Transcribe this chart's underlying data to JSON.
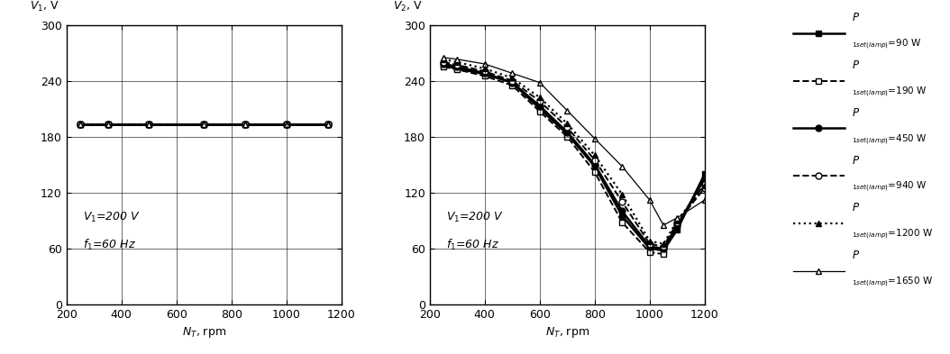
{
  "left_chart": {
    "ylabel": "$V_1$, V",
    "xlabel": "$N_T$, rpm",
    "xlim": [
      200,
      1200
    ],
    "ylim": [
      0,
      300
    ],
    "yticks": [
      0,
      60,
      120,
      180,
      240,
      300
    ],
    "xticks": [
      200,
      400,
      600,
      800,
      1000,
      1200
    ],
    "annotation1": "$V_1$=200 V",
    "annotation2": "$f_1$=60 Hz",
    "series": [
      {
        "x": [
          250,
          350,
          500,
          700,
          850,
          1000,
          1150
        ],
        "y": [
          193,
          193,
          193,
          193,
          193,
          193,
          193
        ]
      },
      {
        "x": [
          250,
          350,
          500,
          700,
          850,
          1000,
          1150
        ],
        "y": [
          193,
          193,
          193,
          193,
          193,
          193,
          193
        ]
      },
      {
        "x": [
          250,
          350,
          500,
          700,
          850,
          1000,
          1150
        ],
        "y": [
          193,
          193,
          193,
          193,
          193,
          193,
          193
        ]
      },
      {
        "x": [
          250,
          350,
          500,
          700,
          850,
          1000,
          1150
        ],
        "y": [
          193,
          193,
          193,
          193,
          193,
          193,
          193
        ]
      },
      {
        "x": [
          250,
          350,
          500,
          700,
          850,
          1000,
          1150
        ],
        "y": [
          193,
          193,
          193,
          193,
          193,
          193,
          193
        ]
      },
      {
        "x": [
          250,
          350,
          500,
          700,
          850,
          1000,
          1150
        ],
        "y": [
          193,
          193,
          193,
          193,
          193,
          193,
          193
        ]
      }
    ]
  },
  "right_chart": {
    "ylabel": "$V_2$, V",
    "xlabel": "$N_T$, rpm",
    "xlim": [
      200,
      1200
    ],
    "ylim": [
      0,
      300
    ],
    "yticks": [
      0,
      60,
      120,
      180,
      240,
      300
    ],
    "xticks": [
      200,
      400,
      600,
      800,
      1000,
      1200
    ],
    "annotation1": "$V_1$=200 V",
    "annotation2": "$f_1$=60 Hz",
    "series": [
      {
        "x": [
          250,
          300,
          400,
          500,
          600,
          700,
          800,
          900,
          1000,
          1050,
          1100,
          1200
        ],
        "y": [
          256,
          253,
          247,
          238,
          210,
          183,
          148,
          95,
          60,
          58,
          80,
          140
        ]
      },
      {
        "x": [
          250,
          300,
          400,
          500,
          600,
          700,
          800,
          900,
          1000,
          1050,
          1100,
          1200
        ],
        "y": [
          255,
          252,
          245,
          235,
          207,
          180,
          142,
          88,
          56,
          54,
          85,
          130
        ]
      },
      {
        "x": [
          250,
          300,
          400,
          500,
          600,
          700,
          800,
          900,
          1000,
          1050,
          1100,
          1200
        ],
        "y": [
          258,
          255,
          248,
          238,
          213,
          185,
          150,
          100,
          62,
          60,
          85,
          135
        ]
      },
      {
        "x": [
          250,
          300,
          400,
          500,
          600,
          700,
          800,
          900,
          1000,
          1050,
          1100,
          1200
        ],
        "y": [
          260,
          257,
          250,
          240,
          218,
          190,
          155,
          110,
          65,
          62,
          88,
          125
        ]
      },
      {
        "x": [
          250,
          300,
          400,
          500,
          600,
          700,
          800,
          900,
          1000,
          1050,
          1100,
          1200
        ],
        "y": [
          263,
          260,
          253,
          243,
          222,
          194,
          160,
          118,
          68,
          65,
          90,
          128
        ]
      },
      {
        "x": [
          250,
          300,
          400,
          500,
          600,
          700,
          800,
          900,
          1000,
          1050,
          1100,
          1200
        ],
        "y": [
          265,
          263,
          258,
          248,
          238,
          208,
          178,
          148,
          112,
          85,
          93,
          112
        ]
      }
    ]
  },
  "legend_labels": [
    "=90 W",
    "=190 W",
    "=450 W",
    "=940 W",
    "=1200 W",
    "=1650 W"
  ]
}
